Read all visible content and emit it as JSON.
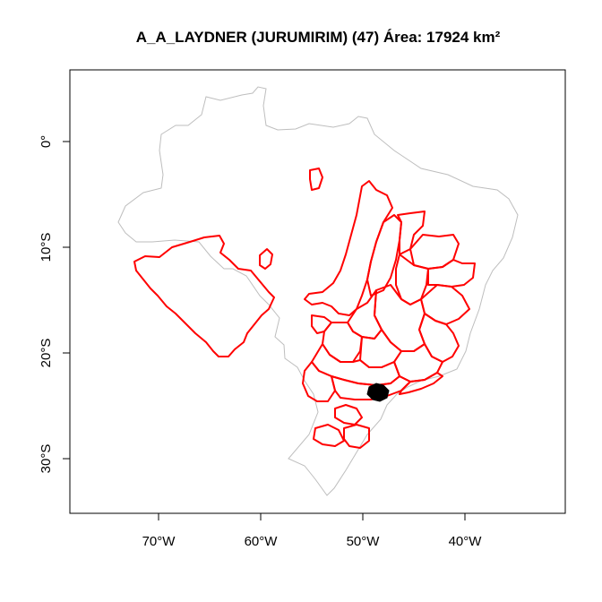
{
  "title": "A_A_LAYDNER (JURUMIRIM) (47) Área: 17924 km²",
  "axes": {
    "x_ticks": [
      {
        "lon": -70,
        "label": "70°W"
      },
      {
        "lon": -60,
        "label": "60°W"
      },
      {
        "lon": -50,
        "label": "50°W"
      },
      {
        "lon": -40,
        "label": "40°W"
      }
    ],
    "y_ticks": [
      {
        "lat": 0,
        "label": "0°"
      },
      {
        "lat": -10,
        "label": "10°S"
      },
      {
        "lat": -20,
        "label": "20°S"
      },
      {
        "lat": -30,
        "label": "30°S"
      }
    ],
    "lon_range": [
      -78.5,
      -30.3
    ],
    "lat_range": [
      -35.2,
      6.8
    ]
  },
  "colors": {
    "country_outline": "#bebebe",
    "basin_outline": "#ff0000",
    "highlight_basin": "#000000",
    "frame": "#000000"
  }
}
